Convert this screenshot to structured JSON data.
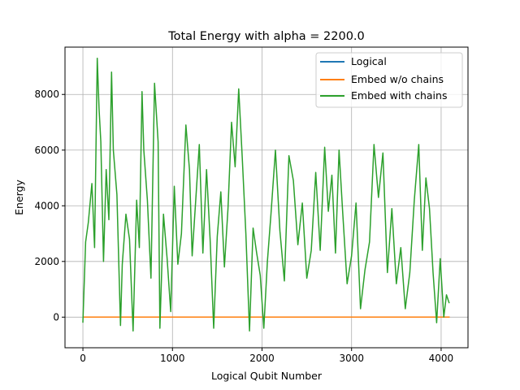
{
  "chart_data": {
    "type": "line",
    "title": "Total Energy with alpha = 2200.0",
    "xlabel": "Logical Qubit Number",
    "ylabel": "Energy",
    "xlim": [
      -200,
      4300
    ],
    "ylim": [
      -1100,
      9700
    ],
    "x_ticks": [
      0,
      1000,
      2000,
      3000,
      4000
    ],
    "y_ticks": [
      0,
      2000,
      4000,
      6000,
      8000
    ],
    "x_tick_labels": [
      "0",
      "1000",
      "2000",
      "3000",
      "4000"
    ],
    "y_tick_labels": [
      "0",
      "2000",
      "4000",
      "6000",
      "8000"
    ],
    "grid": true,
    "legend_position": "top-right",
    "series": [
      {
        "name": "Logical",
        "color": "#1f77b4",
        "x": [
          0,
          1000,
          2000,
          3000,
          4000,
          4096
        ],
        "y": [
          0,
          0,
          0,
          0,
          0,
          0
        ]
      },
      {
        "name": "Embed w/o chains",
        "color": "#ff7f0e",
        "x": [
          0,
          1000,
          2000,
          3000,
          4000,
          4096
        ],
        "y": [
          0,
          0,
          0,
          0,
          0,
          0
        ]
      },
      {
        "name": "Embed with chains",
        "color": "#2ca02c",
        "x": [
          0,
          30,
          60,
          100,
          130,
          160,
          180,
          200,
          230,
          260,
          290,
          320,
          340,
          380,
          420,
          440,
          480,
          520,
          560,
          600,
          630,
          660,
          680,
          720,
          760,
          800,
          840,
          860,
          900,
          940,
          980,
          1020,
          1060,
          1100,
          1150,
          1190,
          1220,
          1260,
          1300,
          1340,
          1380,
          1420,
          1460,
          1500,
          1540,
          1580,
          1620,
          1660,
          1700,
          1740,
          1780,
          1820,
          1860,
          1900,
          1940,
          1980,
          2020,
          2060,
          2100,
          2150,
          2200,
          2250,
          2300,
          2350,
          2400,
          2450,
          2500,
          2550,
          2600,
          2650,
          2700,
          2740,
          2780,
          2820,
          2860,
          2900,
          2950,
          3000,
          3050,
          3100,
          3150,
          3200,
          3250,
          3300,
          3350,
          3400,
          3450,
          3500,
          3550,
          3600,
          3650,
          3700,
          3750,
          3790,
          3830,
          3870,
          3910,
          3950,
          3990,
          4030,
          4060,
          4090
        ],
        "y": [
          -200,
          2700,
          3400,
          4800,
          2500,
          9300,
          7500,
          6300,
          2000,
          5300,
          3500,
          8800,
          6000,
          4400,
          -300,
          1900,
          3700,
          2800,
          -500,
          4200,
          2500,
          8100,
          6000,
          4200,
          1400,
          8400,
          6300,
          -400,
          3700,
          2100,
          200,
          4700,
          1900,
          3000,
          6900,
          5300,
          2200,
          4200,
          6200,
          2300,
          5300,
          2800,
          -400,
          2900,
          4500,
          1800,
          3900,
          7000,
          5400,
          8200,
          5700,
          3000,
          -500,
          3200,
          2300,
          1500,
          -400,
          2000,
          3700,
          6000,
          3100,
          1300,
          5800,
          4900,
          2600,
          4100,
          1400,
          2400,
          5200,
          2400,
          6100,
          3800,
          5100,
          2300,
          6000,
          3800,
          1200,
          2200,
          4100,
          300,
          1700,
          2700,
          6200,
          4300,
          5900,
          1600,
          3900,
          1200,
          2500,
          300,
          1600,
          4200,
          6200,
          2400,
          5000,
          3900,
          1600,
          -200,
          2100,
          0,
          800,
          500
        ]
      }
    ]
  }
}
